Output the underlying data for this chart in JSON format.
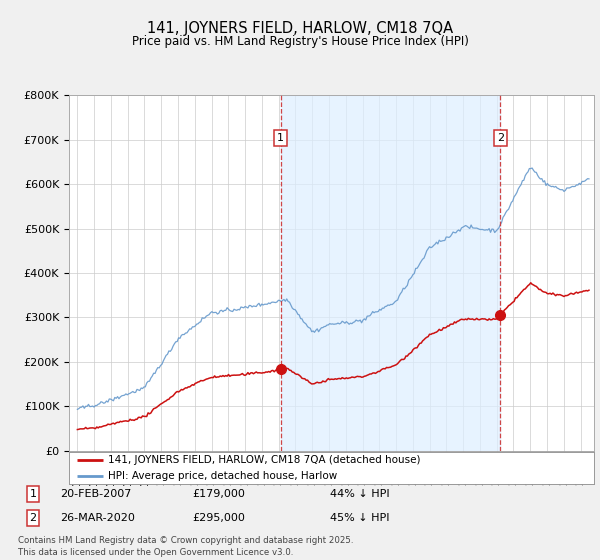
{
  "title": "141, JOYNERS FIELD, HARLOW, CM18 7QA",
  "subtitle": "Price paid vs. HM Land Registry's House Price Index (HPI)",
  "ylim": [
    0,
    800000
  ],
  "yticks": [
    0,
    100000,
    200000,
    300000,
    400000,
    500000,
    600000,
    700000,
    800000
  ],
  "ytick_labels": [
    "£0",
    "£100K",
    "£200K",
    "£300K",
    "£400K",
    "£500K",
    "£600K",
    "£700K",
    "£800K"
  ],
  "hpi_color": "#6699cc",
  "price_color": "#cc1111",
  "vline_color": "#cc3333",
  "shade_color": "#ddeeff",
  "sale1_year": 2007.12,
  "sale1_price": 179000,
  "sale1_label": "1",
  "sale1_date": "20-FEB-2007",
  "sale1_amount": "£179,000",
  "sale1_pct": "44% ↓ HPI",
  "sale2_year": 2020.22,
  "sale2_price": 295000,
  "sale2_label": "2",
  "sale2_date": "26-MAR-2020",
  "sale2_amount": "£295,000",
  "sale2_pct": "45% ↓ HPI",
  "legend_line1": "141, JOYNERS FIELD, HARLOW, CM18 7QA (detached house)",
  "legend_line2": "HPI: Average price, detached house, Harlow",
  "footer": "Contains HM Land Registry data © Crown copyright and database right 2025.\nThis data is licensed under the Open Government Licence v3.0.",
  "bg_color": "#f0f0f0",
  "plot_bg": "#ffffff",
  "grid_color": "#cccccc"
}
